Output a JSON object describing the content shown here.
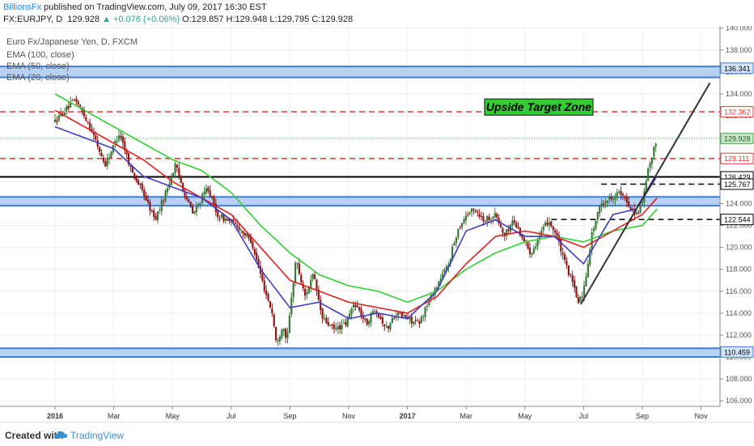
{
  "header": {
    "author": "BillionsFx",
    "published_text": "published on TradingView.com, July 09, 2017 16:30 EST",
    "symbol": "FX:EURJPY, D",
    "price": "129.928",
    "change": "▲ +0.076 (+0.06%)",
    "open": "O:129.857",
    "high": "H:129.948",
    "low": "L:129.795",
    "close": "C:129.928"
  },
  "legend": {
    "title": "Euro Fx/Japanese Yen, D, FXCM",
    "ema100": "EMA (100, close)",
    "ema50": "EMA (50, close)",
    "ema20": "EMA (20, close)"
  },
  "annotation": {
    "label": "Upside Target Zone"
  },
  "footer": {
    "created_with": "Created with",
    "brand": "TradingView"
  },
  "colors": {
    "ema20": "#3f3fbf",
    "ema50": "#e02020",
    "ema100": "#30d030",
    "zone_fill": "#a8c6f0",
    "zone_edge": "#3d7fd9",
    "up_candle": "#3a7a3a",
    "down_candle": "#8b1a1a",
    "resistance_red": "#e53935",
    "target_box": "#32cd32"
  },
  "chart_data": {
    "type": "candlestick",
    "symbol": "EURJPY",
    "timeframe": "D",
    "y_axis": {
      "range": [
        105.5,
        140.2
      ],
      "ticks": [
        "106.000",
        "108.000",
        "110.000",
        "112.000",
        "114.000",
        "116.000",
        "118.000",
        "120.000",
        "122.000",
        "124.000",
        "126.000",
        "128.000",
        "130.000",
        "132.000",
        "134.000",
        "136.000",
        "138.000",
        "140.000"
      ]
    },
    "x_axis": {
      "labels": [
        "2016",
        "Mar",
        "May",
        "Jul",
        "Sep",
        "Nov",
        "2017",
        "Mar",
        "May",
        "Jul",
        "Sep",
        "Nov"
      ],
      "bold_labels": [
        "2016",
        "2017"
      ]
    },
    "price_series": [
      {
        "m": 0,
        "v": 131.5
      },
      {
        "m": 0.7,
        "v": 133.5
      },
      {
        "m": 1.2,
        "v": 131.0
      },
      {
        "m": 1.7,
        "v": 127.5
      },
      {
        "m": 2.2,
        "v": 130.5
      },
      {
        "m": 2.6,
        "v": 127.0
      },
      {
        "m": 3.0,
        "v": 125.0
      },
      {
        "m": 3.4,
        "v": 122.5
      },
      {
        "m": 3.7,
        "v": 124.5
      },
      {
        "m": 4.1,
        "v": 127.5
      },
      {
        "m": 4.4,
        "v": 125.0
      },
      {
        "m": 4.7,
        "v": 123.0
      },
      {
        "m": 5.2,
        "v": 125.5
      },
      {
        "m": 5.5,
        "v": 123.0
      },
      {
        "m": 6.2,
        "v": 122.0
      },
      {
        "m": 6.7,
        "v": 120.5
      },
      {
        "m": 7.1,
        "v": 116.5
      },
      {
        "m": 7.4,
        "v": 114.0
      },
      {
        "m": 7.55,
        "v": 111.0
      },
      {
        "m": 7.75,
        "v": 113.0
      },
      {
        "m": 7.9,
        "v": 111.5
      },
      {
        "m": 8.2,
        "v": 119.0
      },
      {
        "m": 8.5,
        "v": 115.5
      },
      {
        "m": 8.8,
        "v": 117.5
      },
      {
        "m": 9.1,
        "v": 113.5
      },
      {
        "m": 9.5,
        "v": 112.5
      },
      {
        "m": 9.9,
        "v": 113.0
      },
      {
        "m": 10.2,
        "v": 115.0
      },
      {
        "m": 10.6,
        "v": 113.0
      },
      {
        "m": 10.9,
        "v": 114.5
      },
      {
        "m": 11.3,
        "v": 112.5
      },
      {
        "m": 11.6,
        "v": 114.0
      },
      {
        "m": 12.0,
        "v": 113.5
      },
      {
        "m": 12.4,
        "v": 113.0
      },
      {
        "m": 12.7,
        "v": 115.0
      },
      {
        "m": 13.0,
        "v": 116.5
      },
      {
        "m": 13.4,
        "v": 118.5
      },
      {
        "m": 13.7,
        "v": 121.5
      },
      {
        "m": 14.0,
        "v": 123.0
      },
      {
        "m": 14.3,
        "v": 123.5
      },
      {
        "m": 14.6,
        "v": 122.5
      },
      {
        "m": 15.0,
        "v": 123.0
      },
      {
        "m": 15.3,
        "v": 121.0
      },
      {
        "m": 15.6,
        "v": 122.5
      },
      {
        "m": 15.9,
        "v": 121.0
      },
      {
        "m": 16.2,
        "v": 119.5
      },
      {
        "m": 16.5,
        "v": 121.0
      },
      {
        "m": 16.8,
        "v": 122.5
      },
      {
        "m": 17.1,
        "v": 121.0
      },
      {
        "m": 17.3,
        "v": 119.0
      },
      {
        "m": 17.6,
        "v": 117.0
      },
      {
        "m": 17.8,
        "v": 115.0
      },
      {
        "m": 18.0,
        "v": 116.0
      },
      {
        "m": 18.3,
        "v": 121.5
      },
      {
        "m": 18.6,
        "v": 124.0
      },
      {
        "m": 18.9,
        "v": 124.5
      },
      {
        "m": 19.2,
        "v": 125.0
      },
      {
        "m": 19.5,
        "v": 124.0
      },
      {
        "m": 19.8,
        "v": 123.0
      },
      {
        "m": 20.0,
        "v": 124.0
      },
      {
        "m": 20.2,
        "v": 127.0
      },
      {
        "m": 20.4,
        "v": 129.0
      },
      {
        "m": 20.5,
        "v": 130.0
      }
    ],
    "ema20": [
      {
        "m": 0,
        "v": 131.0
      },
      {
        "m": 1,
        "v": 130.0
      },
      {
        "m": 2,
        "v": 129.0
      },
      {
        "m": 3,
        "v": 126.5
      },
      {
        "m": 4,
        "v": 125.5
      },
      {
        "m": 5,
        "v": 124.5
      },
      {
        "m": 6,
        "v": 122.5
      },
      {
        "m": 7,
        "v": 118.0
      },
      {
        "m": 8,
        "v": 114.5
      },
      {
        "m": 9,
        "v": 115.0
      },
      {
        "m": 10,
        "v": 113.5
      },
      {
        "m": 11,
        "v": 114.0
      },
      {
        "m": 12,
        "v": 113.5
      },
      {
        "m": 13,
        "v": 116.0
      },
      {
        "m": 14,
        "v": 121.5
      },
      {
        "m": 15,
        "v": 122.5
      },
      {
        "m": 16,
        "v": 121.0
      },
      {
        "m": 17,
        "v": 121.0
      },
      {
        "m": 18,
        "v": 118.5
      },
      {
        "m": 19,
        "v": 123.0
      },
      {
        "m": 19.8,
        "v": 123.5
      },
      {
        "m": 20.5,
        "v": 126.5
      }
    ],
    "ema50": [
      {
        "m": 0,
        "v": 132.5
      },
      {
        "m": 1,
        "v": 131.0
      },
      {
        "m": 2,
        "v": 129.5
      },
      {
        "m": 3,
        "v": 128.0
      },
      {
        "m": 4,
        "v": 126.0
      },
      {
        "m": 5,
        "v": 124.5
      },
      {
        "m": 6,
        "v": 123.0
      },
      {
        "m": 7,
        "v": 120.0
      },
      {
        "m": 8,
        "v": 117.0
      },
      {
        "m": 9,
        "v": 116.0
      },
      {
        "m": 10,
        "v": 115.0
      },
      {
        "m": 11,
        "v": 114.5
      },
      {
        "m": 12,
        "v": 114.0
      },
      {
        "m": 13,
        "v": 115.5
      },
      {
        "m": 14,
        "v": 118.5
      },
      {
        "m": 15,
        "v": 121.0
      },
      {
        "m": 16,
        "v": 121.5
      },
      {
        "m": 17,
        "v": 121.0
      },
      {
        "m": 18,
        "v": 120.0
      },
      {
        "m": 19,
        "v": 121.5
      },
      {
        "m": 20,
        "v": 123.0
      },
      {
        "m": 20.5,
        "v": 124.5
      }
    ],
    "ema100": [
      {
        "m": 0,
        "v": 134.0
      },
      {
        "m": 1,
        "v": 132.5
      },
      {
        "m": 2,
        "v": 131.0
      },
      {
        "m": 3,
        "v": 129.5
      },
      {
        "m": 4,
        "v": 128.0
      },
      {
        "m": 5,
        "v": 127.0
      },
      {
        "m": 6,
        "v": 125.0
      },
      {
        "m": 7,
        "v": 122.0
      },
      {
        "m": 8,
        "v": 119.5
      },
      {
        "m": 9,
        "v": 117.5
      },
      {
        "m": 10,
        "v": 116.5
      },
      {
        "m": 11,
        "v": 116.0
      },
      {
        "m": 12,
        "v": 115.0
      },
      {
        "m": 13,
        "v": 116.0
      },
      {
        "m": 14,
        "v": 118.0
      },
      {
        "m": 15,
        "v": 119.5
      },
      {
        "m": 16,
        "v": 120.5
      },
      {
        "m": 17,
        "v": 121.0
      },
      {
        "m": 18,
        "v": 120.5
      },
      {
        "m": 19,
        "v": 121.5
      },
      {
        "m": 20,
        "v": 122.0
      },
      {
        "m": 20.5,
        "v": 123.5
      }
    ],
    "zones": [
      {
        "name": "upper-support-zone",
        "from": 135.5,
        "to": 136.5
      },
      {
        "name": "middle-support-zone",
        "from": 123.8,
        "to": 124.6
      },
      {
        "name": "lower-support-zone",
        "from": 110.0,
        "to": 110.8
      }
    ],
    "horizontal_lines": [
      {
        "name": "target-line",
        "value": 132.362,
        "style": "dashed-red"
      },
      {
        "name": "resistance-line",
        "value": 128.111,
        "style": "dashed-red"
      },
      {
        "name": "key-level-line",
        "value": 126.429,
        "style": "solid-black"
      },
      {
        "name": "short-level-line-upper",
        "value": 125.767,
        "style": "dashed-black",
        "from_m": 18.6
      },
      {
        "name": "short-level-line-lower",
        "value": 122.544,
        "style": "dashed-black",
        "from_m": 16.9
      }
    ],
    "trendline": {
      "from": {
        "m": 17.9,
        "v": 114.8
      },
      "to": {
        "m": 22.3,
        "v": 135.0
      }
    },
    "price_labels": [
      {
        "value": 136.341,
        "text": "136.341",
        "style": "blue"
      },
      {
        "value": 132.362,
        "text": "132.362",
        "style": "red"
      },
      {
        "value": 129.928,
        "text": "129.928",
        "style": "green"
      },
      {
        "value": 128.111,
        "text": "128.111",
        "style": "red"
      },
      {
        "value": 126.429,
        "text": "126.429",
        "style": "black"
      },
      {
        "value": 125.767,
        "text": "125.767",
        "style": "black"
      },
      {
        "value": 122.544,
        "text": "122.544",
        "style": "black"
      },
      {
        "value": 110.459,
        "text": "110.459",
        "style": "blue"
      }
    ],
    "target_zone_value": 132.8,
    "current_price": 129.928
  }
}
